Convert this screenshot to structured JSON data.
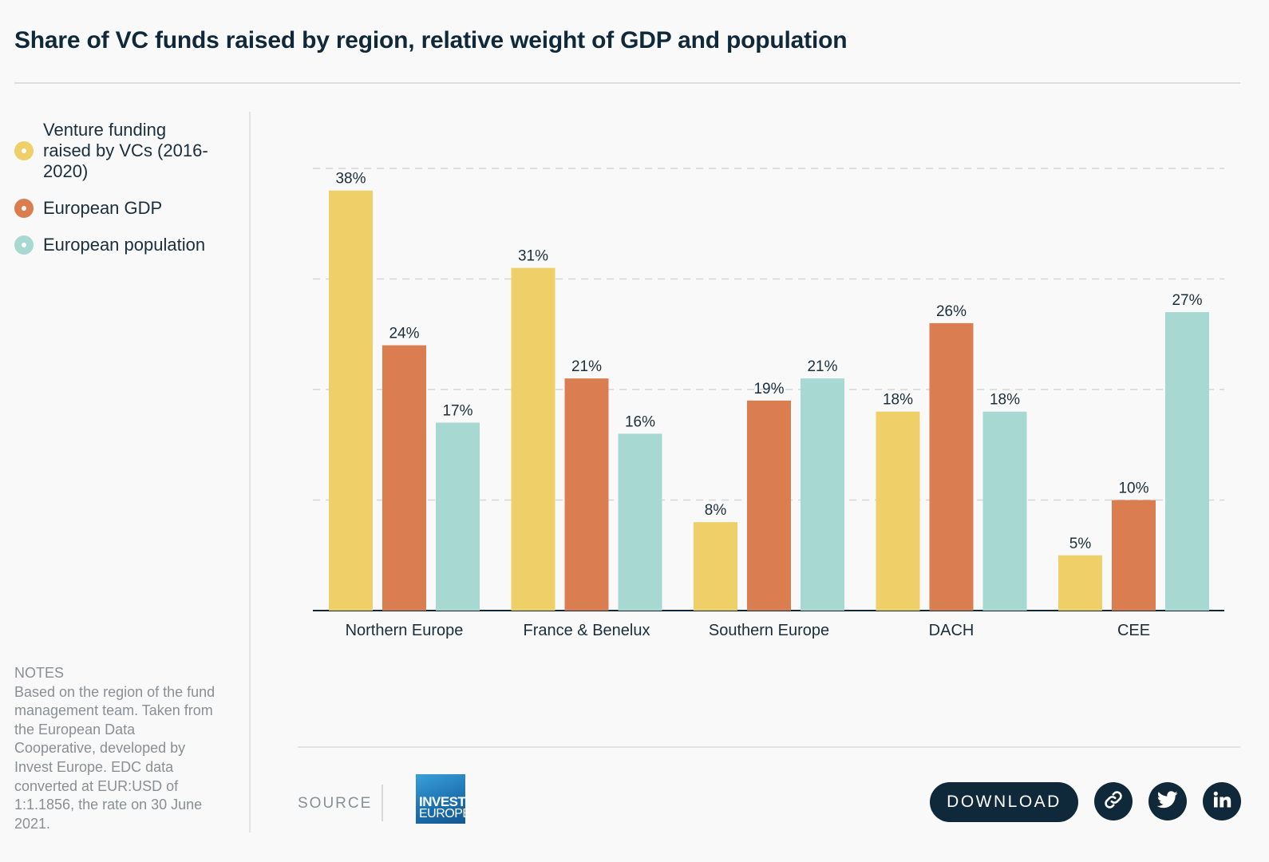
{
  "title": "Share of VC funds raised by region, relative weight of GDP and population",
  "legend": [
    {
      "label": "Venture funding raised by VCs (2016-2020)",
      "color": "#efcf67"
    },
    {
      "label": "European GDP",
      "color": "#da7d51"
    },
    {
      "label": "European population",
      "color": "#a7d9d2"
    }
  ],
  "notes": {
    "title": "NOTES",
    "text": "Based on the region of the fund management team. Taken from the European Data Cooperative, developed by Invest Europe. EDC data converted at EUR:USD of 1:1.1856, the rate on 30 June 2021."
  },
  "footer": {
    "source_label": "SOURCE",
    "logo_line1": "INVEST",
    "logo_line2": "EUROPE",
    "download_label": "DOWNLOAD",
    "share_icons": [
      "link-icon",
      "twitter-icon",
      "linkedin-icon"
    ]
  },
  "chart_data": {
    "type": "bar",
    "categories": [
      "Northern Europe",
      "France & Benelux",
      "Southern Europe",
      "DACH",
      "CEE"
    ],
    "series": [
      {
        "name": "Venture funding raised by VCs (2016-2020)",
        "values": [
          38,
          31,
          8,
          18,
          5
        ],
        "color": "#efcf67"
      },
      {
        "name": "European GDP",
        "values": [
          24,
          21,
          19,
          26,
          10
        ],
        "color": "#da7d51"
      },
      {
        "name": "European population",
        "values": [
          17,
          16,
          21,
          18,
          27
        ],
        "color": "#a7d9d2"
      }
    ],
    "value_suffix": "%",
    "ylim": [
      0,
      40
    ],
    "gridlines": [
      10,
      20,
      30,
      40
    ],
    "grid": "dashed horizontal",
    "xlabel": "",
    "ylabel": ""
  }
}
